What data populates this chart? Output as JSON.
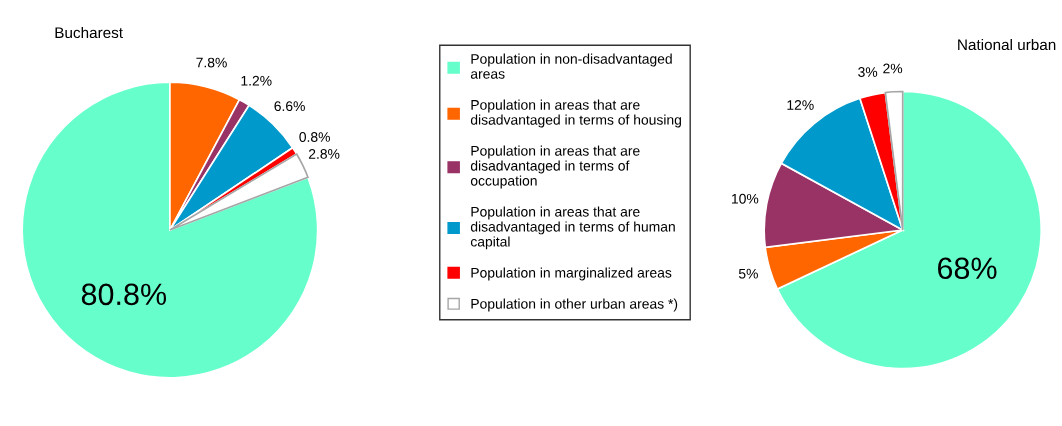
{
  "chart_data": [
    {
      "type": "pie",
      "title": "Bucharest",
      "categories": [
        "Population in non-disadvantaged areas",
        "Population in areas that are disadvantaged in terms of housing",
        "Population in areas that are disadvantaged in terms of occupation",
        "Population in areas that are disadvantaged in terms of human capital",
        "Population in marginalized areas",
        "Population in other urban areas *)"
      ],
      "values": [
        80.8,
        7.8,
        1.2,
        6.6,
        0.8,
        2.8
      ],
      "value_labels": [
        "80.8%",
        "7.8%",
        "1.2%",
        "6.6%",
        "0.8%",
        "2.8%"
      ],
      "colors": [
        "#66ffcc",
        "#ff6600",
        "#993366",
        "#0099cc",
        "#ff0000",
        "#ffffff"
      ],
      "legend": "right"
    },
    {
      "type": "pie",
      "title": "National urban",
      "categories": [
        null,
        null,
        null,
        null,
        null,
        null
      ],
      "values": [
        68,
        5,
        10,
        12,
        3,
        2
      ],
      "value_labels": [
        "68%",
        "5%",
        "10%",
        "12%",
        "3%",
        "2%"
      ],
      "colors": [
        "#66ffcc",
        "#ff6600",
        "#993366",
        "#0099cc",
        "#ff0000",
        "#ffffff"
      ]
    }
  ]
}
